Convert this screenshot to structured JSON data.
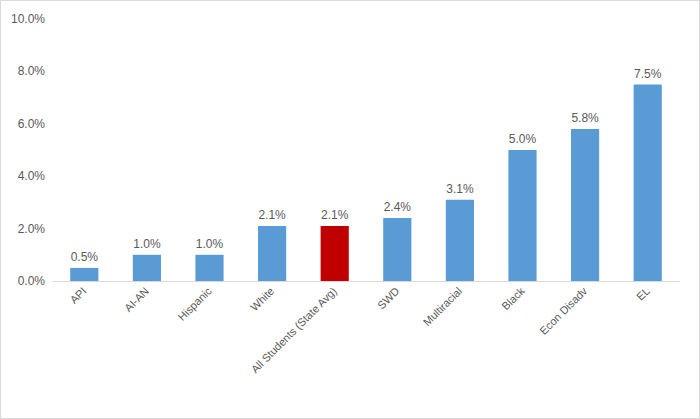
{
  "chart_data": {
    "type": "bar",
    "categories": [
      "API",
      "AI-AN",
      "Hispanic",
      "White",
      "All Students (State Avg)",
      "SWD",
      "Multiracial",
      "Black",
      "Econ Disadv",
      "EL"
    ],
    "values": [
      0.5,
      1.0,
      1.0,
      2.1,
      2.1,
      2.4,
      3.1,
      5.0,
      5.8,
      7.5
    ],
    "value_labels": [
      "0.5%",
      "1.0%",
      "1.0%",
      "2.1%",
      "2.1%",
      "2.4%",
      "3.1%",
      "5.0%",
      "5.8%",
      "7.5%"
    ],
    "colors": [
      "#5b9bd5",
      "#5b9bd5",
      "#5b9bd5",
      "#5b9bd5",
      "#c00000",
      "#5b9bd5",
      "#5b9bd5",
      "#5b9bd5",
      "#5b9bd5",
      "#5b9bd5"
    ],
    "ylim": [
      0,
      10
    ],
    "yticks": [
      {
        "value": 0,
        "label": "0.0%"
      },
      {
        "value": 2,
        "label": "2.0%"
      },
      {
        "value": 4,
        "label": "4.0%"
      },
      {
        "value": 6,
        "label": "6.0%"
      },
      {
        "value": 8,
        "label": "8.0%"
      },
      {
        "value": 10,
        "label": "10.0%"
      }
    ],
    "data_labels": true,
    "grid": false
  }
}
